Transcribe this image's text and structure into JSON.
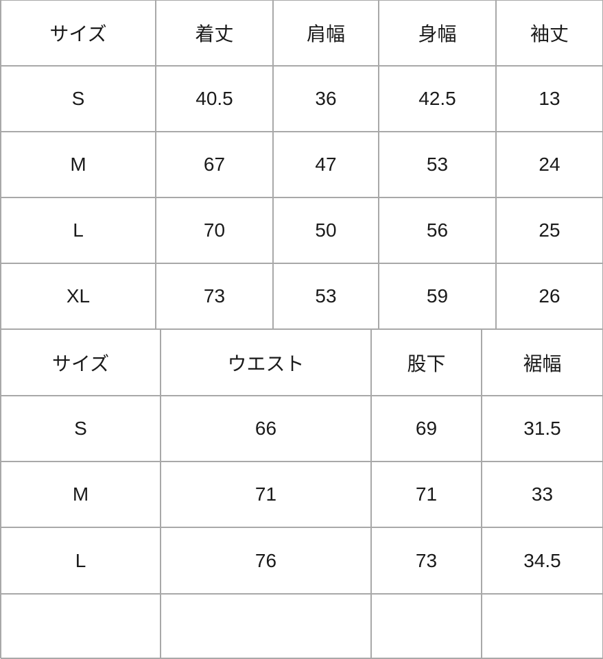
{
  "tops_table": {
    "headers": [
      "サイズ",
      "着丈",
      "肩幅",
      "身幅",
      "袖丈"
    ],
    "rows": [
      [
        "S",
        "40.5",
        "36",
        "42.5",
        "13"
      ],
      [
        "M",
        "67",
        "47",
        "53",
        "24"
      ],
      [
        "L",
        "70",
        "50",
        "56",
        "25"
      ],
      [
        "XL",
        "73",
        "53",
        "59",
        "26"
      ]
    ]
  },
  "bottoms_table": {
    "headers": [
      "サイズ",
      "ウエスト",
      "股下",
      "裾幅"
    ],
    "rows": [
      [
        "S",
        "66",
        "69",
        "31.5"
      ],
      [
        "M",
        "71",
        "71",
        "33"
      ],
      [
        "L",
        "76",
        "73",
        "34.5"
      ]
    ]
  }
}
